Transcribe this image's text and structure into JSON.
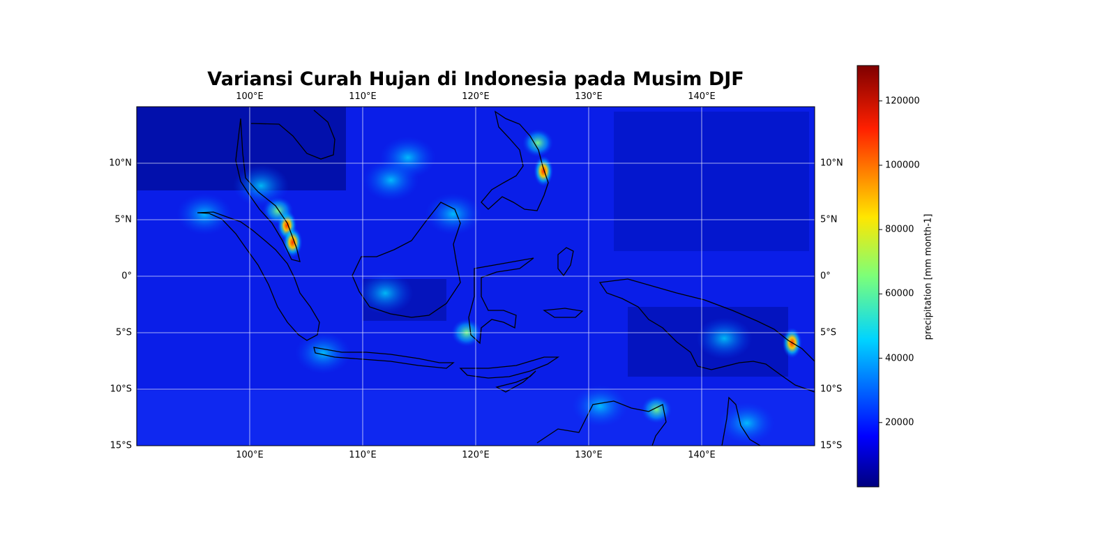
{
  "title": "Variansi Curah Hujan di Indonesia pada Musim DJF",
  "map": {
    "type": "heatmap",
    "lon_range": [
      90,
      150
    ],
    "lat_range": [
      -15,
      15
    ],
    "colormap": "jet",
    "gridlines": true,
    "coastlines": true,
    "lon_ticks": [
      {
        "value": 100,
        "label": "100°E"
      },
      {
        "value": 110,
        "label": "110°E"
      },
      {
        "value": 120,
        "label": "120°E"
      },
      {
        "value": 130,
        "label": "130°E"
      },
      {
        "value": 140,
        "label": "140°E"
      }
    ],
    "lat_ticks": [
      {
        "value": 10,
        "label": "10°N"
      },
      {
        "value": 5,
        "label": "5°N"
      },
      {
        "value": 0,
        "label": "0°"
      },
      {
        "value": -5,
        "label": "5°S"
      },
      {
        "value": -10,
        "label": "10°S"
      },
      {
        "value": -15,
        "label": "15°S"
      }
    ]
  },
  "colorbar": {
    "label": "precipitation [mm month-1]",
    "range": [
      0,
      131000
    ],
    "ticks": [
      {
        "value": 20000,
        "label": "20000"
      },
      {
        "value": 40000,
        "label": "40000"
      },
      {
        "value": 60000,
        "label": "60000"
      },
      {
        "value": 80000,
        "label": "80000"
      },
      {
        "value": 100000,
        "label": "100000"
      },
      {
        "value": 120000,
        "label": "120000"
      }
    ]
  },
  "chart_data": {
    "type": "heatmap",
    "title": "Variansi Curah Hujan di Indonesia pada Musim DJF",
    "xlabel": "",
    "ylabel": "",
    "xlim": [
      90,
      150
    ],
    "ylim": [
      -15,
      15
    ],
    "background_value": 12000,
    "hotspots": [
      {
        "lon": 103.3,
        "lat": 4.5,
        "value": 92000
      },
      {
        "lon": 103.8,
        "lat": 3.0,
        "value": 95000
      },
      {
        "lon": 102.5,
        "lat": 5.8,
        "value": 70000
      },
      {
        "lon": 101.0,
        "lat": 8.0,
        "value": 35000
      },
      {
        "lon": 126.0,
        "lat": 9.3,
        "value": 105000
      },
      {
        "lon": 125.5,
        "lat": 11.8,
        "value": 55000
      },
      {
        "lon": 114.0,
        "lat": 10.5,
        "value": 38000
      },
      {
        "lon": 112.5,
        "lat": 8.5,
        "value": 40000
      },
      {
        "lon": 148.0,
        "lat": -5.9,
        "value": 88000
      },
      {
        "lon": 142.0,
        "lat": -5.5,
        "value": 45000
      },
      {
        "lon": 119.2,
        "lat": -5.0,
        "value": 50000
      },
      {
        "lon": 106.5,
        "lat": -6.8,
        "value": 45000
      },
      {
        "lon": 136.0,
        "lat": -11.8,
        "value": 50000
      },
      {
        "lon": 131.0,
        "lat": -11.5,
        "value": 40000
      },
      {
        "lon": 144.0,
        "lat": -13.0,
        "value": 30000
      },
      {
        "lon": 96.0,
        "lat": 5.5,
        "value": 35000
      },
      {
        "lon": 118.0,
        "lat": 5.5,
        "value": 35000
      },
      {
        "lon": 112.0,
        "lat": -1.5,
        "value": 30000
      }
    ],
    "colorbar_label": "precipitation [mm month-1]"
  }
}
